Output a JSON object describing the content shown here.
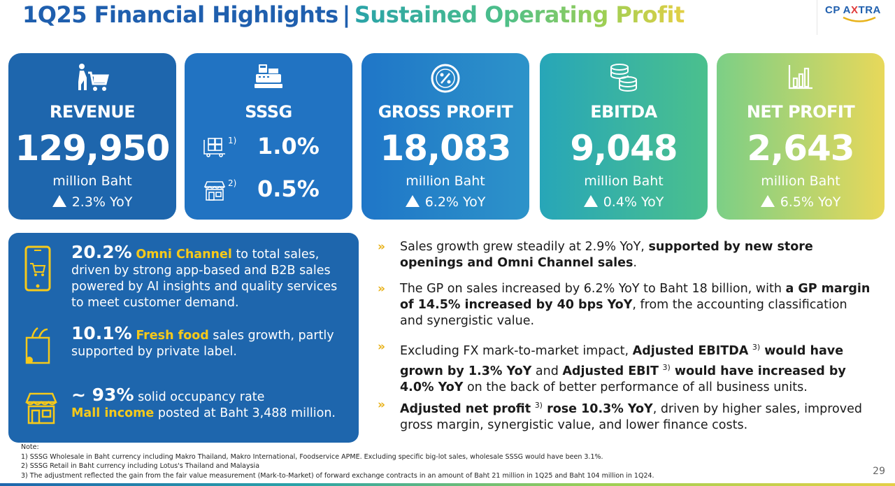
{
  "header": {
    "title_part1": "1Q25 Financial Highlights",
    "separator": "|",
    "title_part2": "Sustained Operating Profit",
    "logo_text_a": "CP A",
    "logo_text_x": "X",
    "logo_text_b": "TRA"
  },
  "cards": [
    {
      "label": "REVENUE",
      "value": "129,950",
      "unit": "million Baht",
      "yoy": "2.3% YoY",
      "icon": "shopping-cart-icon"
    },
    {
      "label": "SSSG",
      "rows": [
        {
          "sup": "1)",
          "value": "1.0%",
          "icon": "wholesale-pallet-icon"
        },
        {
          "sup": "2)",
          "value": "0.5%",
          "icon": "retail-store-icon"
        }
      ],
      "icon": "cash-register-icon"
    },
    {
      "label": "GROSS PROFIT",
      "value": "18,083",
      "unit": "million Baht",
      "yoy": "6.2% YoY",
      "icon": "percent-coin-icon"
    },
    {
      "label": "EBITDA",
      "value": "9,048",
      "unit": "million Baht",
      "yoy": "0.4% YoY",
      "icon": "coin-stack-icon"
    },
    {
      "label": "NET PROFIT",
      "value": "2,643",
      "unit": "million Baht",
      "yoy": "6.5% YoY",
      "icon": "bar-chart-icon"
    }
  ],
  "panel": {
    "omni": {
      "num": "20.2%",
      "hl": "Omni Channel",
      "rest": " to total sales, driven by strong app-based and B2B sales powered by AI insights and quality services to meet customer demand."
    },
    "fresh": {
      "num": "10.1%",
      "hl": "Fresh food",
      "rest": " sales growth, partly supported by private label."
    },
    "mall": {
      "num": "~ 93%",
      "rest1": " solid occupancy rate",
      "hl": "Mall income",
      "rest2": " posted at Baht 3,488 million."
    }
  },
  "bullets": {
    "chevron": "»",
    "b1": {
      "plain": "Sales growth grew steadily at 2.9% YoY, ",
      "bold": "supported by new store openings and Omni Channel sales",
      "end": "."
    },
    "b2": {
      "plain": "The GP on sales increased by 6.2% YoY to Baht 18 billion, with ",
      "bold": "a GP margin of 14.5% increased by 40 bps YoY",
      "end": ", from the accounting classification and synergistic value."
    },
    "b3": {
      "p1": "Excluding FX mark-to-market impact, ",
      "b1": "Adjusted EBITDA",
      "s1": "3)",
      "b2": " would have grown by 1.3% YoY",
      "p2": " and ",
      "b3": "Adjusted EBIT",
      "s2": "3)",
      "b4": " would have increased by 4.0% YoY",
      "p3": " on the back of better performance of all business units."
    },
    "b4": {
      "b1": "Adjusted net profit",
      "s1": "3)",
      "b2": " rose 10.3% YoY",
      "p1": ", driven by higher sales, improved gross margin, synergistic value, and lower finance costs."
    }
  },
  "notes": {
    "heading": "Note:",
    "n1": "1) SSSG Wholesale in Baht currency including Makro Thailand, Makro International, Foodservice APME. Excluding specific big-lot sales, wholesale SSSG would have been 3.1%.",
    "n2": "2) SSSG Retail in Baht currency including Lotus's Thailand and Malaysia",
    "n3": "3) The adjustment reflected the gain from the fair value measurement (Mark-to-Market) of forward exchange contracts in an amount of Baht 21 million in 1Q25 and Baht 104 million in 1Q24."
  },
  "page_number": "29"
}
